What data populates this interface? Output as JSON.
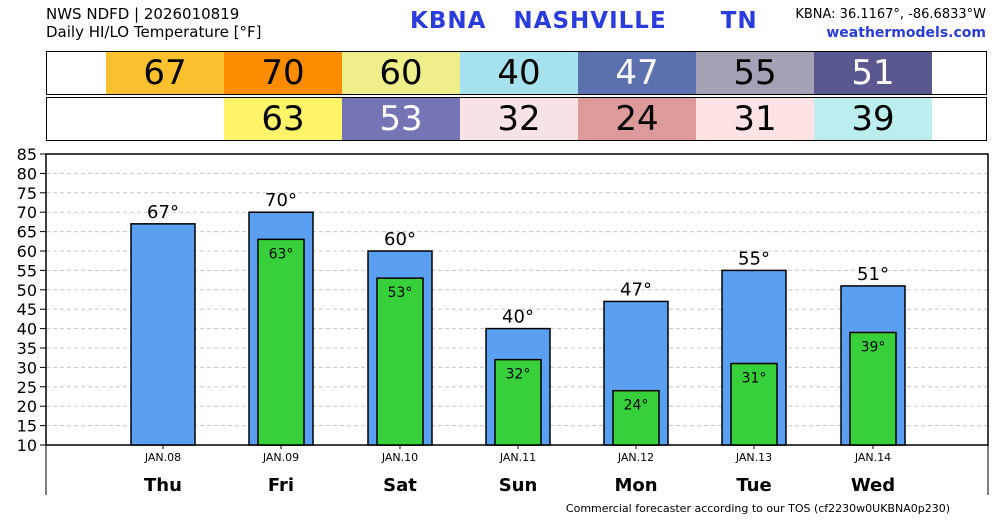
{
  "header": {
    "line1": "NWS NDFD | 2026010819",
    "line2": "Daily HI/LO Temperature [°F]",
    "station": "KBNA   NASHVILLE      TN",
    "coords": "KBNA: 36.1167°, -86.6833°W",
    "site": "weathermodels.com"
  },
  "hi_strip": [
    {
      "value": "67",
      "bg": "#fbc02d",
      "fg": "#000000"
    },
    {
      "value": "70",
      "bg": "#fb8c00",
      "fg": "#000000"
    },
    {
      "value": "60",
      "bg": "#eeee8a",
      "fg": "#000000"
    },
    {
      "value": "40",
      "bg": "#a6e2ee",
      "fg": "#000000"
    },
    {
      "value": "47",
      "bg": "#5b70ad",
      "fg": "#ffffff"
    },
    {
      "value": "55",
      "bg": "#a4a3b5",
      "fg": "#000000"
    },
    {
      "value": "51",
      "bg": "#5a598f",
      "fg": "#ffffff"
    }
  ],
  "lo_strip": [
    {
      "value": "",
      "bg": "#ffffff",
      "fg": "#000000"
    },
    {
      "value": "63",
      "bg": "#fdf46a",
      "fg": "#000000"
    },
    {
      "value": "53",
      "bg": "#7574b5",
      "fg": "#ffffff"
    },
    {
      "value": "32",
      "bg": "#f7e3e3",
      "fg": "#000000"
    },
    {
      "value": "24",
      "bg": "#dc9a9a",
      "fg": "#000000"
    },
    {
      "value": "31",
      "bg": "#fde3e3",
      "fg": "#000000"
    },
    {
      "value": "39",
      "bg": "#bdeeee",
      "fg": "#000000"
    }
  ],
  "chart_data": {
    "type": "bar",
    "categories": [
      "JAN.08",
      "JAN.09",
      "JAN.10",
      "JAN.11",
      "JAN.12",
      "JAN.13",
      "JAN.14"
    ],
    "days": [
      "Thu",
      "Fri",
      "Sat",
      "Sun",
      "Mon",
      "Tue",
      "Wed"
    ],
    "series": [
      {
        "values": [
          67,
          70,
          60,
          40,
          47,
          55,
          51
        ],
        "labels": [
          "67°",
          "70°",
          "60°",
          "40°",
          "47°",
          "55°",
          "51°"
        ],
        "color": "#5a9ff0"
      },
      {
        "values": [
          null,
          63,
          53,
          32,
          24,
          31,
          39
        ],
        "labels": [
          "",
          "63°",
          "53°",
          "32°",
          "24°",
          "31°",
          "39°"
        ],
        "color": "#37d03b"
      }
    ],
    "yticks": [
      "10",
      "15",
      "20",
      "25",
      "30",
      "35",
      "40",
      "45",
      "50",
      "55",
      "60",
      "65",
      "70",
      "75",
      "80",
      "85"
    ],
    "ylim": [
      10,
      85
    ],
    "grid": true
  },
  "footer": "Commercial forecaster according to our TOS (cf2230w0UKBNA0p230)"
}
